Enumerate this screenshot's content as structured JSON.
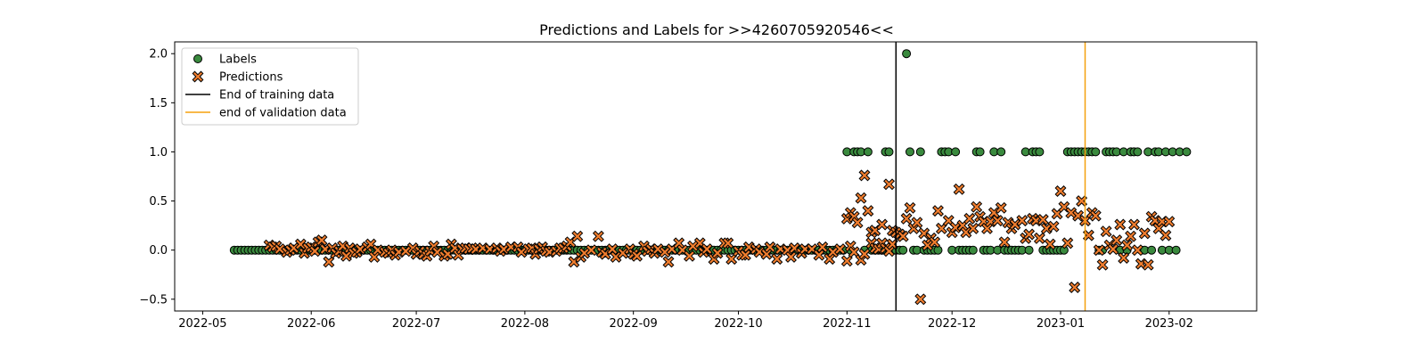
{
  "chart_data": {
    "type": "scatter",
    "title": "Predictions and Labels for >>4260705920546<<",
    "xlabel": "",
    "ylabel": "",
    "x_range": [
      "2022-04-23",
      "2023-02-26"
    ],
    "ylim": [
      -0.62,
      2.12
    ],
    "grid": false,
    "legend_position": "top-left",
    "x_ticks": [
      "2022-05",
      "2022-06",
      "2022-07",
      "2022-08",
      "2022-09",
      "2022-10",
      "2022-11",
      "2022-12",
      "2023-01",
      "2023-02"
    ],
    "y_ticks": [
      "−0.5",
      "0.0",
      "0.5",
      "1.0",
      "1.5",
      "2.0"
    ],
    "legend": {
      "labels": "Labels",
      "predictions": "Predictions",
      "train_end": "End of training data",
      "val_end": "end of validation data"
    },
    "start_date": "2022-05-10",
    "train_end_date": "2022-11-15",
    "val_end_date": "2023-01-08",
    "end_date": "2023-02-04",
    "label_one_dates": [
      "2022-11-01",
      "2022-11-03",
      "2022-11-04",
      "2022-11-05",
      "2022-11-07",
      "2022-11-12",
      "2022-11-13",
      "2022-11-19",
      "2022-11-22",
      "2022-11-28",
      "2022-11-29",
      "2022-11-30",
      "2022-12-02",
      "2022-12-08",
      "2022-12-09",
      "2022-12-13",
      "2022-12-15",
      "2022-12-22",
      "2022-12-24",
      "2022-12-25",
      "2022-12-26",
      "2023-01-03",
      "2023-01-04",
      "2023-01-05",
      "2023-01-06",
      "2023-01-07",
      "2023-01-08",
      "2023-01-09",
      "2023-01-10",
      "2023-01-11",
      "2023-01-14",
      "2023-01-15",
      "2023-01-16",
      "2023-01-17",
      "2023-01-19",
      "2023-01-21",
      "2023-01-22",
      "2023-01-23",
      "2023-01-26",
      "2023-01-28",
      "2023-01-29",
      "2023-01-31",
      "2023-02-02",
      "2023-02-04",
      "2023-02-06"
    ],
    "label_two_dates": [
      "2022-11-18"
    ],
    "predictions": [
      [
        "2022-05-20",
        0.05
      ],
      [
        "2022-05-21",
        0.03
      ],
      [
        "2022-05-22",
        0.04
      ],
      [
        "2022-05-23",
        0.01
      ],
      [
        "2022-05-25",
        -0.02
      ],
      [
        "2022-05-26",
        0.0
      ],
      [
        "2022-05-27",
        0.02
      ],
      [
        "2022-05-29",
        0.06
      ],
      [
        "2022-05-30",
        -0.03
      ],
      [
        "2022-05-31",
        0.02
      ],
      [
        "2022-06-01",
        0.03
      ],
      [
        "2022-06-02",
        -0.01
      ],
      [
        "2022-06-03",
        0.08
      ],
      [
        "2022-06-04",
        0.1
      ],
      [
        "2022-06-05",
        0.01
      ],
      [
        "2022-06-06",
        -0.12
      ],
      [
        "2022-06-07",
        0.02
      ],
      [
        "2022-06-08",
        -0.03
      ],
      [
        "2022-06-09",
        -0.01
      ],
      [
        "2022-06-10",
        0.04
      ],
      [
        "2022-06-11",
        -0.06
      ],
      [
        "2022-06-12",
        0.02
      ],
      [
        "2022-06-13",
        -0.03
      ],
      [
        "2022-06-14",
        -0.02
      ],
      [
        "2022-06-15",
        0.01
      ],
      [
        "2022-06-17",
        0.03
      ],
      [
        "2022-06-18",
        0.06
      ],
      [
        "2022-06-19",
        -0.07
      ],
      [
        "2022-06-20",
        0.0
      ],
      [
        "2022-06-22",
        -0.02
      ],
      [
        "2022-06-23",
        -0.03
      ],
      [
        "2022-06-24",
        0.0
      ],
      [
        "2022-06-25",
        -0.05
      ],
      [
        "2022-06-26",
        -0.02
      ],
      [
        "2022-06-28",
        -0.01
      ],
      [
        "2022-06-30",
        0.02
      ],
      [
        "2022-07-01",
        -0.04
      ],
      [
        "2022-07-02",
        -0.01
      ],
      [
        "2022-07-03",
        -0.04
      ],
      [
        "2022-07-04",
        -0.06
      ],
      [
        "2022-07-05",
        -0.01
      ],
      [
        "2022-07-06",
        0.04
      ],
      [
        "2022-07-07",
        -0.02
      ],
      [
        "2022-07-09",
        -0.06
      ],
      [
        "2022-07-10",
        -0.04
      ],
      [
        "2022-07-11",
        0.06
      ],
      [
        "2022-07-12",
        0.02
      ],
      [
        "2022-07-13",
        -0.05
      ],
      [
        "2022-07-14",
        0.01
      ],
      [
        "2022-07-15",
        0.02
      ],
      [
        "2022-07-16",
        0.01
      ],
      [
        "2022-07-17",
        0.02
      ],
      [
        "2022-07-18",
        0.01
      ],
      [
        "2022-07-20",
        0.02
      ],
      [
        "2022-07-22",
        0.01
      ],
      [
        "2022-07-24",
        0.02
      ],
      [
        "2022-07-25",
        -0.01
      ],
      [
        "2022-07-26",
        0.01
      ],
      [
        "2022-07-28",
        0.03
      ],
      [
        "2022-07-30",
        0.03
      ],
      [
        "2022-07-31",
        -0.02
      ],
      [
        "2022-08-02",
        0.01
      ],
      [
        "2022-08-03",
        0.02
      ],
      [
        "2022-08-04",
        -0.04
      ],
      [
        "2022-08-05",
        0.01
      ],
      [
        "2022-08-06",
        0.03
      ],
      [
        "2022-08-07",
        -0.01
      ],
      [
        "2022-08-08",
        -0.02
      ],
      [
        "2022-08-10",
        -0.01
      ],
      [
        "2022-08-11",
        0.02
      ],
      [
        "2022-08-12",
        0.02
      ],
      [
        "2022-08-13",
        0.04
      ],
      [
        "2022-08-14",
        0.08
      ],
      [
        "2022-08-15",
        -0.12
      ],
      [
        "2022-08-16",
        0.14
      ],
      [
        "2022-08-17",
        -0.07
      ],
      [
        "2022-08-18",
        -0.03
      ],
      [
        "2022-08-20",
        0.0
      ],
      [
        "2022-08-22",
        0.14
      ],
      [
        "2022-08-23",
        -0.02
      ],
      [
        "2022-08-24",
        -0.04
      ],
      [
        "2022-08-26",
        0.01
      ],
      [
        "2022-08-27",
        -0.07
      ],
      [
        "2022-08-29",
        -0.03
      ],
      [
        "2022-08-31",
        0.01
      ],
      [
        "2022-09-01",
        -0.04
      ],
      [
        "2022-09-02",
        -0.06
      ],
      [
        "2022-09-04",
        0.04
      ],
      [
        "2022-09-05",
        -0.01
      ],
      [
        "2022-09-06",
        0.01
      ],
      [
        "2022-09-07",
        -0.03
      ],
      [
        "2022-09-08",
        0.01
      ],
      [
        "2022-09-10",
        -0.02
      ],
      [
        "2022-09-11",
        -0.12
      ],
      [
        "2022-09-12",
        0.01
      ],
      [
        "2022-09-14",
        0.07
      ],
      [
        "2022-09-15",
        0.0
      ],
      [
        "2022-09-17",
        -0.06
      ],
      [
        "2022-09-18",
        0.04
      ],
      [
        "2022-09-20",
        0.07
      ],
      [
        "2022-09-21",
        -0.02
      ],
      [
        "2022-09-22",
        0.01
      ],
      [
        "2022-09-24",
        -0.09
      ],
      [
        "2022-09-25",
        -0.03
      ],
      [
        "2022-09-27",
        0.07
      ],
      [
        "2022-09-28",
        0.07
      ],
      [
        "2022-09-29",
        -0.09
      ],
      [
        "2022-10-01",
        -0.01
      ],
      [
        "2022-10-02",
        -0.05
      ],
      [
        "2022-10-03",
        -0.05
      ],
      [
        "2022-10-04",
        0.03
      ],
      [
        "2022-10-06",
        0.01
      ],
      [
        "2022-10-07",
        -0.02
      ],
      [
        "2022-10-09",
        -0.04
      ],
      [
        "2022-10-10",
        0.03
      ],
      [
        "2022-10-12",
        -0.09
      ],
      [
        "2022-10-13",
        0.01
      ],
      [
        "2022-10-15",
        0.0
      ],
      [
        "2022-10-16",
        -0.07
      ],
      [
        "2022-10-17",
        0.02
      ],
      [
        "2022-10-19",
        -0.03
      ],
      [
        "2022-10-20",
        0.01
      ],
      [
        "2022-10-22",
        0.01
      ],
      [
        "2022-10-24",
        -0.05
      ],
      [
        "2022-10-25",
        0.03
      ],
      [
        "2022-10-27",
        -0.09
      ],
      [
        "2022-10-28",
        -0.02
      ],
      [
        "2022-10-30",
        0.01
      ],
      [
        "2022-11-01",
        -0.11
      ],
      [
        "2022-11-02",
        0.04
      ],
      [
        "2022-11-03",
        -0.02
      ],
      [
        "2022-11-05",
        -0.1
      ],
      [
        "2022-11-06",
        -0.04
      ],
      [
        "2022-11-08",
        0.07
      ],
      [
        "2022-11-09",
        0.02
      ],
      [
        "2022-11-10",
        0.01
      ],
      [
        "2022-11-11",
        0.07
      ],
      [
        "2022-11-12",
        0.02
      ],
      [
        "2022-11-13",
        -0.01
      ],
      [
        "2022-11-14",
        0.06
      ]
    ]
  }
}
